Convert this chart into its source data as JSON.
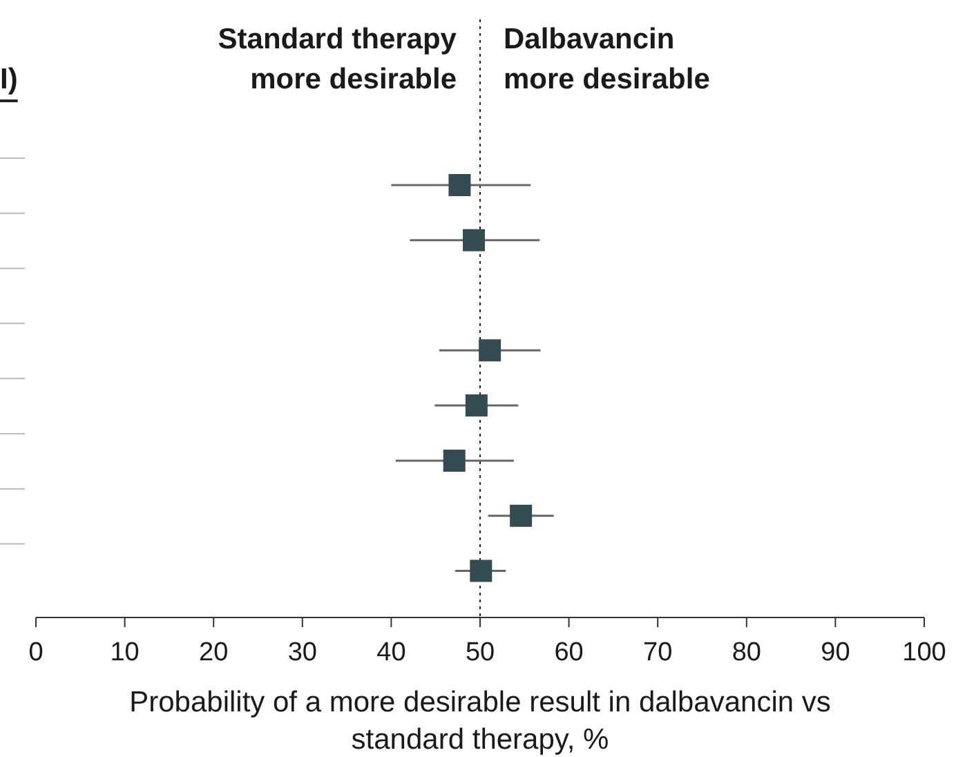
{
  "chart_data": {
    "type": "scatter",
    "orientation": "horizontal",
    "marker": "square",
    "color": "#344b52",
    "categories": [
      null,
      null,
      null,
      null,
      null,
      null,
      null,
      null
    ],
    "values": [
      47.7,
      49.3,
      null,
      51.1,
      49.6,
      47.1,
      54.6,
      50.1
    ],
    "errors": [
      [
        40.0,
        55.7
      ],
      [
        42.1,
        56.7
      ],
      null,
      [
        45.4,
        56.8
      ],
      [
        44.9,
        54.3
      ],
      [
        40.5,
        53.8
      ],
      [
        50.9,
        58.3
      ],
      [
        47.2,
        52.9
      ]
    ],
    "xlim": [
      0,
      100
    ],
    "xticks": [
      0,
      10,
      20,
      30,
      40,
      50,
      60,
      70,
      80,
      90,
      100
    ],
    "xlabel": "Probability of a more desirable result in dalbavancin vs standard therapy, %",
    "ref_lines": [
      {
        "axis": "x",
        "value": 50,
        "line_style": "dotted",
        "color": "#222222"
      }
    ],
    "annotations": [
      "I)",
      "Standard therapy\nmore desirable",
      "Dalbavancin\nmore desirable"
    ],
    "tick_labels": "x",
    "grid": false,
    "legend": false
  }
}
